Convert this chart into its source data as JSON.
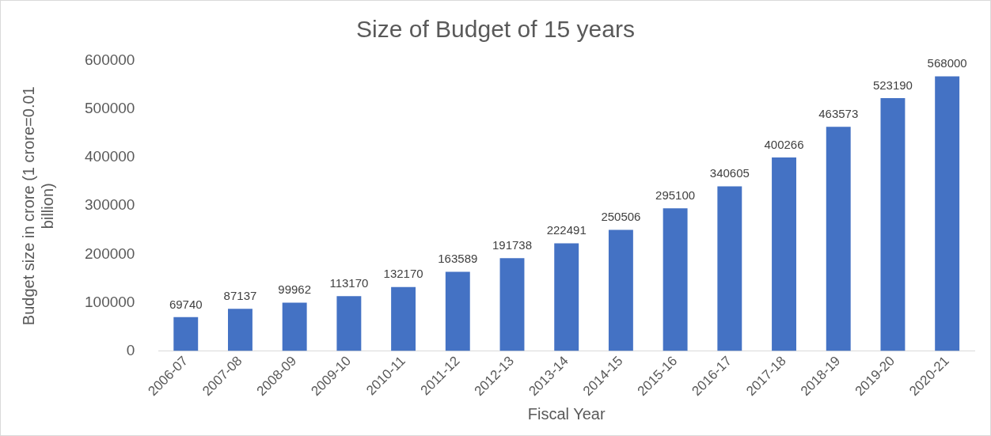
{
  "chart_data": {
    "type": "bar",
    "title": "Size of Budget of 15 years",
    "xlabel": "Fiscal Year",
    "ylabel": "Budget size in crore (1 crore=0.01 billion)",
    "categories": [
      "2006-07",
      "2007-08",
      "2008-09",
      "2009-10",
      "2010-11",
      "2011-12",
      "2012-13",
      "2013-14",
      "2014-15",
      "2015-16",
      "2016-17",
      "2017-18",
      "2018-19",
      "2019-20",
      "2020-21"
    ],
    "values": [
      69740,
      87137,
      99962,
      113170,
      132170,
      163589,
      191738,
      222491,
      250506,
      295100,
      340605,
      400266,
      463573,
      523190,
      568000
    ],
    "color": "#4472c4",
    "ylim": [
      0,
      600000
    ],
    "yticks": [
      0,
      100000,
      200000,
      300000,
      400000,
      500000,
      600000
    ],
    "grid": false,
    "legend": false,
    "data_labels": true
  }
}
